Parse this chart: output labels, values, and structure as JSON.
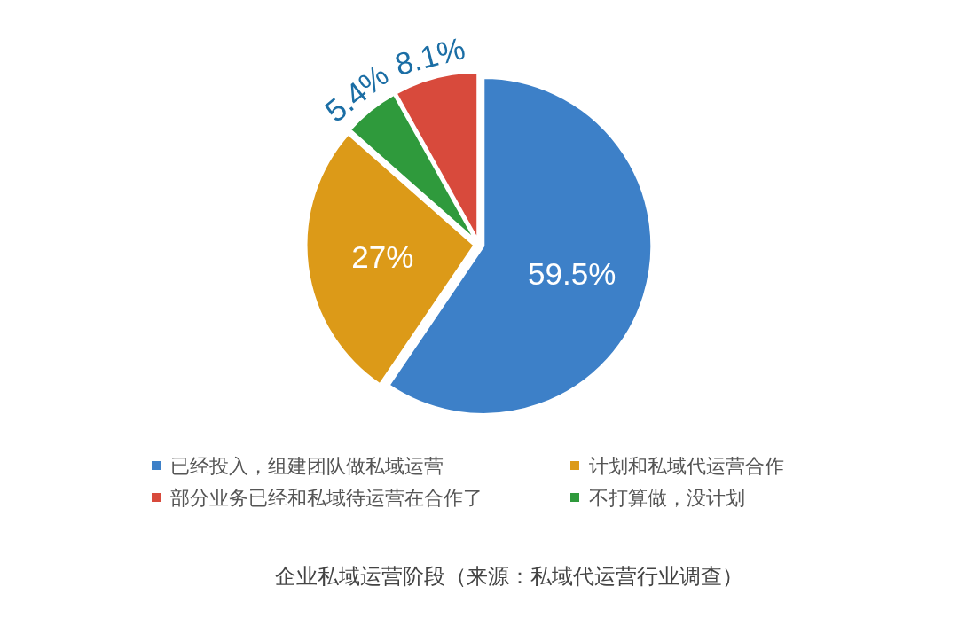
{
  "chart_data": {
    "type": "pie",
    "title": "企业私域运营阶段（来源：私域代运营行业调查）",
    "categories": [
      "已经投入，组建团队做私域运营",
      "计划和私域代运营合作",
      "不打算做，没计划",
      "部分业务已经和私域待运营在合作了"
    ],
    "values": [
      59.5,
      27,
      5.4,
      8.1
    ],
    "colors": [
      "#3d80c8",
      "#dc9a18",
      "#2f9a3c",
      "#d84a3c"
    ],
    "value_labels": [
      "59.5%",
      "27%",
      "5.4%",
      "8.1%"
    ],
    "legend": "bottom"
  }
}
